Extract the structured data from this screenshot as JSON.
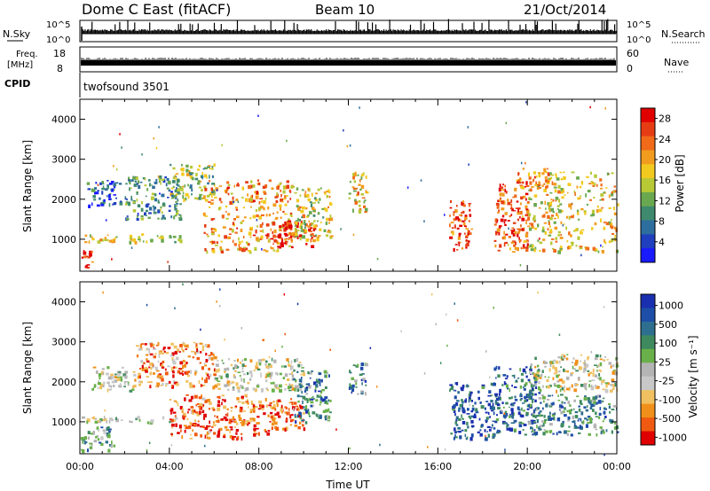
{
  "header": {
    "station": "Dome C East (fitACF)",
    "beam": "Beam 10",
    "date": "21/Oct/2014"
  },
  "status_panels": {
    "nsky": {
      "label": "N.Sky",
      "tick_top": "10^5",
      "tick_bottom": "10^0"
    },
    "nsearch": {
      "label": "N.Search",
      "tick_top": "10^5",
      "tick_bottom": "10^0"
    },
    "freq": {
      "label_line1": "Freq.",
      "label_line2": "[MHz]",
      "tick_top": "18",
      "tick_bottom": "8"
    },
    "nave": {
      "label": "Nave",
      "tick_top": "60",
      "tick_bottom": "0"
    },
    "cpid": {
      "label": "CPID",
      "value": "twofsound 3501"
    }
  },
  "colors": {
    "power": [
      "#1a1aff",
      "#1f3fbf",
      "#2e6e9e",
      "#3f8a6e",
      "#6aa84f",
      "#b8c936",
      "#f2c91f",
      "#f29c1f",
      "#f06a1a",
      "#e63c14",
      "#e00000"
    ],
    "velocity": [
      "#e00000",
      "#f05a10",
      "#f0901a",
      "#f0c060",
      "#c8c8c8",
      "#b4b4b4",
      "#6ab04a",
      "#3e8a5e",
      "#2e6e8e",
      "#1e4ea8",
      "#1a2fb0"
    ]
  },
  "chart_data": [
    {
      "type": "heatmap",
      "name": "power",
      "xlabel": "",
      "ylabel": "Slant Range [km]",
      "xlim_hours": [
        0,
        24
      ],
      "ylim": [
        200,
        4500
      ],
      "yticks": [
        "1000",
        "2000",
        "3000",
        "4000"
      ],
      "colorbar": {
        "label": "Power [dB]",
        "ticks": [
          "4",
          "8",
          "12",
          "16",
          "20",
          "24",
          "28"
        ],
        "range": [
          0,
          30
        ]
      },
      "regions": [
        {
          "t0": 0.0,
          "t1": 0.6,
          "r0": 300,
          "r1": 800,
          "level": 0.9
        },
        {
          "t0": 0.0,
          "t1": 4.5,
          "r0": 950,
          "r1": 1150,
          "level": 0.55
        },
        {
          "t0": 0.3,
          "t1": 1.8,
          "r0": 1800,
          "r1": 2500,
          "level": 0.2
        },
        {
          "t0": 2.0,
          "t1": 4.5,
          "r0": 1500,
          "r1": 2600,
          "level": 0.3
        },
        {
          "t0": 4.0,
          "t1": 6.0,
          "r0": 2000,
          "r1": 2900,
          "level": 0.45
        },
        {
          "t0": 5.5,
          "t1": 9.5,
          "r0": 700,
          "r1": 2500,
          "level": 0.7
        },
        {
          "t0": 8.5,
          "t1": 10.5,
          "r0": 800,
          "r1": 1500,
          "level": 0.9
        },
        {
          "t0": 9.5,
          "t1": 11.2,
          "r0": 1000,
          "r1": 2300,
          "level": 0.55
        },
        {
          "t0": 12.0,
          "t1": 12.8,
          "r0": 1700,
          "r1": 2700,
          "level": 0.6
        },
        {
          "t0": 16.5,
          "t1": 17.5,
          "r0": 700,
          "r1": 2000,
          "level": 0.85
        },
        {
          "t0": 18.5,
          "t1": 20.0,
          "r0": 700,
          "r1": 2400,
          "level": 0.85
        },
        {
          "t0": 19.5,
          "t1": 21.0,
          "r0": 2300,
          "r1": 2800,
          "level": 0.75
        },
        {
          "t0": 20.0,
          "t1": 24.0,
          "r0": 700,
          "r1": 2700,
          "level": 0.6
        }
      ]
    },
    {
      "type": "heatmap",
      "name": "velocity",
      "xlabel": "Time UT",
      "ylabel": "Slant Range [km]",
      "xlim_hours": [
        0,
        24
      ],
      "ylim": [
        200,
        4500
      ],
      "xticks": [
        "00:00",
        "04:00",
        "08:00",
        "12:00",
        "16:00",
        "20:00",
        "00:00"
      ],
      "yticks": [
        "1000",
        "2000",
        "3000",
        "4000"
      ],
      "colorbar": {
        "label": "Velocity [m s⁻¹]",
        "ticks": [
          "1000",
          "500",
          "100",
          "25",
          "-25",
          "-100",
          "-500",
          "-1000"
        ],
        "range": [
          -1000,
          1000
        ]
      },
      "regions": [
        {
          "t0": 0.0,
          "t1": 1.5,
          "r0": 300,
          "r1": 900,
          "level": 0.65
        },
        {
          "t0": 0.0,
          "t1": 4.5,
          "r0": 1000,
          "r1": 1150,
          "level": 0.48
        },
        {
          "t0": 0.5,
          "t1": 2.5,
          "r0": 1800,
          "r1": 2400,
          "level": 0.45
        },
        {
          "t0": 2.5,
          "t1": 6.0,
          "r0": 1900,
          "r1": 3000,
          "level": 0.2
        },
        {
          "t0": 4.0,
          "t1": 7.5,
          "r0": 600,
          "r1": 1700,
          "level": 0.15
        },
        {
          "t0": 7.5,
          "t1": 10.0,
          "r0": 700,
          "r1": 1600,
          "level": 0.15
        },
        {
          "t0": 6.0,
          "t1": 10.0,
          "r0": 1800,
          "r1": 2600,
          "level": 0.45
        },
        {
          "t0": 9.5,
          "t1": 11.2,
          "r0": 1000,
          "r1": 2300,
          "level": 0.75
        },
        {
          "t0": 12.0,
          "t1": 12.8,
          "r0": 1700,
          "r1": 2500,
          "level": 0.7
        },
        {
          "t0": 16.5,
          "t1": 18.5,
          "r0": 600,
          "r1": 2000,
          "level": 0.85
        },
        {
          "t0": 18.5,
          "t1": 20.5,
          "r0": 700,
          "r1": 2400,
          "level": 0.8
        },
        {
          "t0": 20.0,
          "t1": 24.0,
          "r0": 1800,
          "r1": 2700,
          "level": 0.45
        },
        {
          "t0": 20.0,
          "t1": 24.0,
          "r0": 700,
          "r1": 1700,
          "level": 0.7
        }
      ]
    }
  ]
}
